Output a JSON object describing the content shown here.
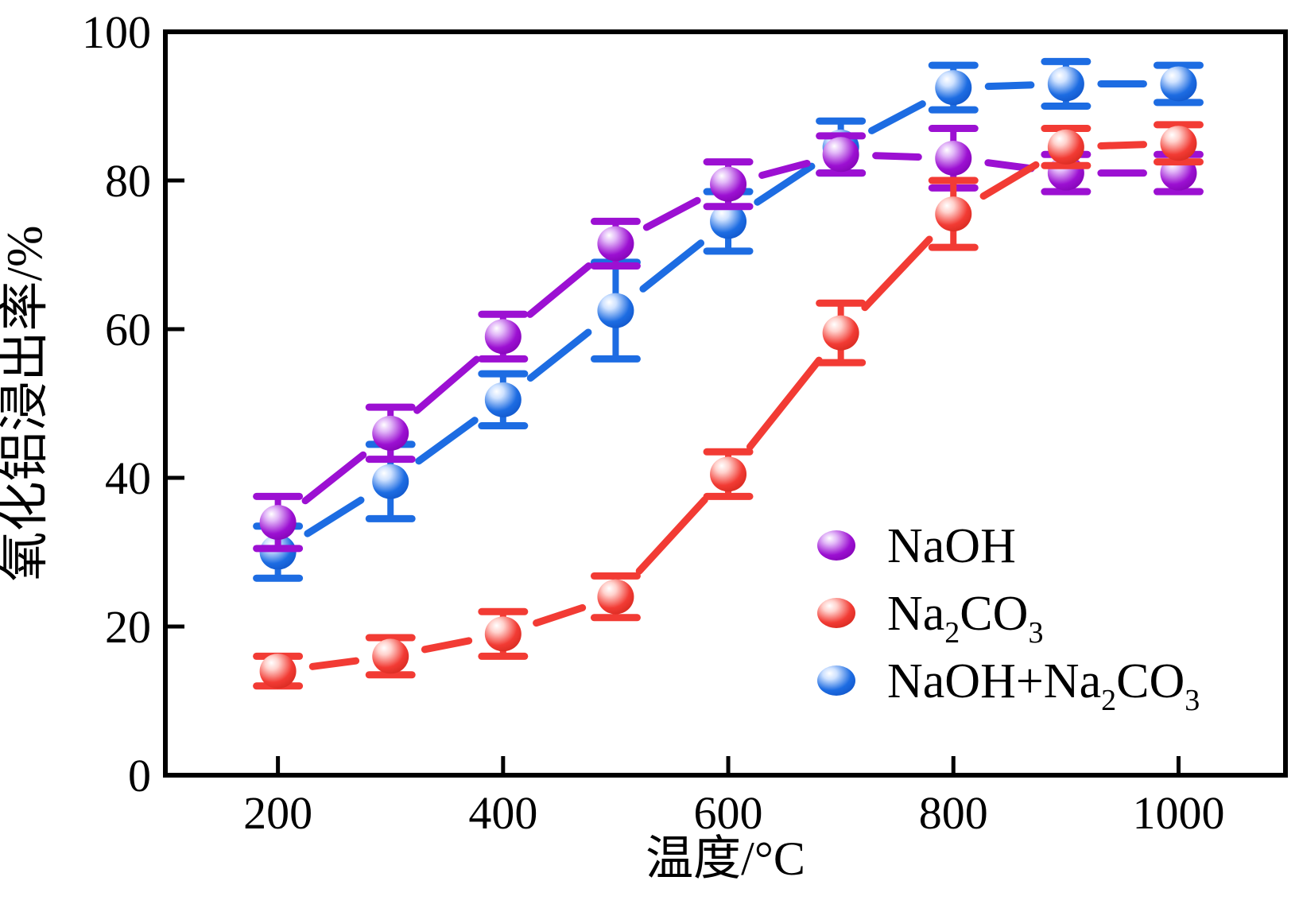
{
  "figure": {
    "background": "#ffffff",
    "frame_color": "#000000",
    "text_color": "#000000"
  },
  "axes": {
    "xlabel": "温度/°C",
    "ylabel": "氧化铝浸出率/%",
    "xlim": [
      100,
      1095
    ],
    "ylim": [
      0,
      100
    ],
    "xticks": [
      200,
      400,
      600,
      800,
      1000
    ],
    "yticks": [
      0,
      20,
      40,
      60,
      80,
      100
    ],
    "grid": "off"
  },
  "chart_data": {
    "type": "line",
    "title": "",
    "xlabel": "温度/°C",
    "ylabel": "氧化铝浸出率/%",
    "x": [
      200,
      300,
      400,
      500,
      600,
      700,
      800,
      900,
      1000
    ],
    "series": [
      {
        "name": "NaOH",
        "color": "#9C10D2",
        "color_dark": "#7A00AA",
        "color_light": "#E2B8F8",
        "marker": "sphere",
        "values": [
          34,
          46,
          59,
          71.5,
          79.5,
          83.5,
          83,
          81,
          81
        ],
        "errors": [
          3.5,
          3.5,
          3,
          3,
          3,
          2.5,
          4,
          2.5,
          2.5
        ]
      },
      {
        "name": "Na2CO3",
        "color": "#F23B34",
        "color_dark": "#CC2318",
        "color_light": "#FFD2CD",
        "marker": "sphere",
        "values": [
          14,
          16,
          19,
          24,
          40.5,
          59.5,
          75.5,
          84.5,
          85
        ],
        "errors": [
          2,
          2.5,
          3,
          2.8,
          3,
          4,
          4.5,
          2.5,
          2.5
        ]
      },
      {
        "name": "NaOH+Na2CO3",
        "color": "#1D6CE2",
        "color_dark": "#0C4EC2",
        "color_light": "#CFE2FF",
        "marker": "sphere",
        "values": [
          30,
          39.5,
          50.5,
          62.5,
          74.5,
          84.5,
          92.5,
          93,
          93
        ],
        "errors": [
          3.5,
          5,
          3.5,
          6.5,
          4,
          3.5,
          3,
          3,
          2.5
        ]
      }
    ],
    "legend": [
      {
        "series": "NaOH",
        "segments": [
          {
            "t": "NaOH"
          }
        ]
      },
      {
        "series": "Na2CO3",
        "segments": [
          {
            "t": "Na"
          },
          {
            "t": "2",
            "sub": true
          },
          {
            "t": "CO"
          },
          {
            "t": "3",
            "sub": true
          }
        ]
      },
      {
        "series": "NaOH+Na2CO3",
        "segments": [
          {
            "t": "NaOH+Na"
          },
          {
            "t": "2",
            "sub": true
          },
          {
            "t": "CO"
          },
          {
            "t": "3",
            "sub": true
          }
        ]
      }
    ],
    "legend_position": "right-center",
    "error_bars": "on"
  }
}
